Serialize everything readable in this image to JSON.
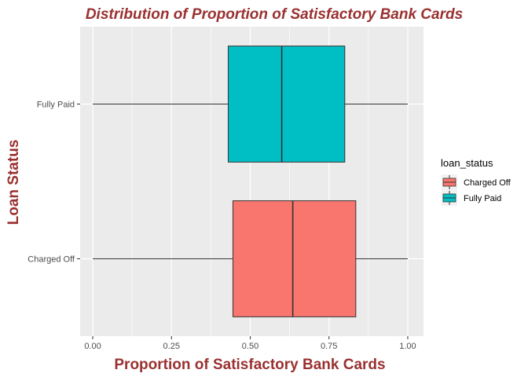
{
  "chart_data": {
    "type": "boxplot",
    "orientation": "horizontal",
    "title": "Distribution of Proportion of Satisfactory Bank Cards",
    "xlabel": "Proportion of Satisfactory Bank Cards",
    "ylabel": "Loan Status",
    "xlim": [
      -0.04,
      1.05
    ],
    "xticks": [
      0.0,
      0.25,
      0.5,
      0.75,
      1.0
    ],
    "xtick_labels": [
      "0.00",
      "0.25",
      "0.50",
      "0.75",
      "1.00"
    ],
    "grid": true,
    "categories": [
      "Charged Off",
      "Fully Paid"
    ],
    "boxes": [
      {
        "category": "Charged Off",
        "min": 0.0,
        "q1": 0.445,
        "median": 0.635,
        "q3": 0.835,
        "max": 1.0,
        "color": "#F8766D"
      },
      {
        "category": "Fully Paid",
        "min": 0.0,
        "q1": 0.43,
        "median": 0.6,
        "q3": 0.8,
        "max": 1.0,
        "color": "#00BFC4"
      }
    ],
    "legend": {
      "title": "loan_status",
      "placement": "right",
      "entries": [
        {
          "label": "Charged Off",
          "color": "#F8766D"
        },
        {
          "label": "Fully Paid",
          "color": "#00BFC4"
        }
      ]
    },
    "colors": {
      "panel": "#EBEBEB",
      "grid": "#FFFFFF",
      "title": "#9A3030"
    }
  }
}
